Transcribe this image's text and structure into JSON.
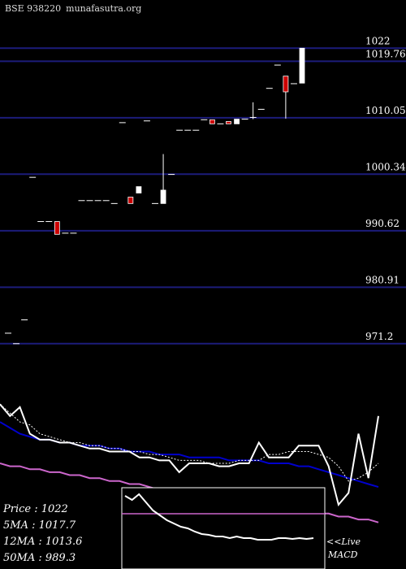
{
  "header": {
    "symbol": "BSE 938220",
    "site": "munafasutra.org"
  },
  "chart_data": {
    "type": "candlestick",
    "price_levels": [
      "1022",
      "1019.76",
      "1010.05",
      "1000.34",
      "990.62",
      "980.91",
      "971.2"
    ],
    "price_range": [
      966.0,
      1024.0
    ],
    "candles": [
      {
        "o": 973.0,
        "h": 973.0,
        "l": 973.0,
        "c": 973.0,
        "color": "white"
      },
      {
        "o": 971.2,
        "h": 971.2,
        "l": 971.2,
        "c": 971.2,
        "color": "white"
      },
      {
        "o": 975.3,
        "h": 975.3,
        "l": 975.3,
        "c": 975.3,
        "color": "white"
      },
      {
        "o": 999.8,
        "h": 999.8,
        "l": 999.8,
        "c": 999.8,
        "color": "white"
      },
      {
        "o": 992.2,
        "h": 992.2,
        "l": 992.2,
        "c": 992.2,
        "color": "white"
      },
      {
        "o": 992.2,
        "h": 992.2,
        "l": 992.2,
        "c": 992.2,
        "color": "white"
      },
      {
        "o": 992.2,
        "h": 992.2,
        "l": 990.0,
        "c": 990.0,
        "color": "red"
      },
      {
        "o": 990.2,
        "h": 990.2,
        "l": 990.2,
        "c": 990.2,
        "color": "white"
      },
      {
        "o": 990.2,
        "h": 990.2,
        "l": 990.2,
        "c": 990.2,
        "color": "white"
      },
      {
        "o": 995.8,
        "h": 995.8,
        "l": 995.8,
        "c": 995.8,
        "color": "white"
      },
      {
        "o": 995.8,
        "h": 995.8,
        "l": 995.8,
        "c": 995.8,
        "color": "white"
      },
      {
        "o": 995.8,
        "h": 995.8,
        "l": 995.8,
        "c": 995.8,
        "color": "white"
      },
      {
        "o": 995.8,
        "h": 995.8,
        "l": 995.8,
        "c": 995.8,
        "color": "white"
      },
      {
        "o": 995.3,
        "h": 995.3,
        "l": 995.3,
        "c": 995.3,
        "color": "white"
      },
      {
        "o": 1009.2,
        "h": 1009.2,
        "l": 1009.2,
        "c": 1009.2,
        "color": "white"
      },
      {
        "o": 996.4,
        "h": 996.4,
        "l": 995.3,
        "c": 995.3,
        "color": "red"
      },
      {
        "o": 997.1,
        "h": 998.2,
        "l": 997.1,
        "c": 998.2,
        "color": "white"
      },
      {
        "o": 1009.5,
        "h": 1009.5,
        "l": 1009.5,
        "c": 1009.5,
        "color": "white"
      },
      {
        "o": 995.3,
        "h": 995.3,
        "l": 995.3,
        "c": 995.3,
        "color": "white"
      },
      {
        "o": 995.3,
        "h": 1003.8,
        "l": 995.3,
        "c": 997.6,
        "color": "white"
      },
      {
        "o": 1000.3,
        "h": 1000.3,
        "l": 1000.3,
        "c": 1000.3,
        "color": "white"
      },
      {
        "o": 1007.9,
        "h": 1007.9,
        "l": 1007.9,
        "c": 1007.9,
        "color": "white"
      },
      {
        "o": 1007.9,
        "h": 1007.9,
        "l": 1007.9,
        "c": 1007.9,
        "color": "white"
      },
      {
        "o": 1007.9,
        "h": 1007.9,
        "l": 1007.9,
        "c": 1007.9,
        "color": "white"
      },
      {
        "o": 1009.7,
        "h": 1009.7,
        "l": 1009.7,
        "c": 1009.7,
        "color": "white"
      },
      {
        "o": 1009.7,
        "h": 1009.7,
        "l": 1009.0,
        "c": 1009.0,
        "color": "red"
      },
      {
        "o": 1009.0,
        "h": 1009.0,
        "l": 1009.0,
        "c": 1009.0,
        "color": "red"
      },
      {
        "o": 1009.4,
        "h": 1009.4,
        "l": 1009.0,
        "c": 1009.0,
        "color": "red"
      },
      {
        "o": 1009.0,
        "h": 1009.8,
        "l": 1009.0,
        "c": 1009.8,
        "color": "white"
      },
      {
        "o": 1009.8,
        "h": 1009.8,
        "l": 1009.8,
        "c": 1009.8,
        "color": "white"
      },
      {
        "o": 1010.1,
        "h": 1012.7,
        "l": 1009.8,
        "c": 1010.1,
        "color": "white"
      },
      {
        "o": 1011.5,
        "h": 1011.5,
        "l": 1011.5,
        "c": 1011.5,
        "color": "white"
      },
      {
        "o": 1015.1,
        "h": 1015.1,
        "l": 1015.1,
        "c": 1015.1,
        "color": "white"
      },
      {
        "o": 1019.1,
        "h": 1019.1,
        "l": 1019.1,
        "c": 1019.1,
        "color": "white"
      },
      {
        "o": 1017.2,
        "h": 1017.2,
        "l": 1009.9,
        "c": 1014.5,
        "color": "red"
      },
      {
        "o": 1015.9,
        "h": 1015.9,
        "l": 1015.9,
        "c": 1015.9,
        "color": "white"
      },
      {
        "o": 1016.0,
        "h": 1022.0,
        "l": 1016.0,
        "c": 1022.0,
        "color": "white"
      }
    ],
    "indicator_lines": {
      "price": [
        1022,
        1018,
        1021,
        1012,
        1010,
        1010,
        1009,
        1009,
        1008,
        1007,
        1007,
        1006,
        1006,
        1006,
        1004,
        1004,
        1003,
        1003,
        999,
        1002,
        1002,
        1002,
        1001,
        1001,
        1002,
        1002,
        1009,
        1004,
        1004,
        1004,
        1008,
        1008,
        1008,
        1001,
        988,
        992,
        1012,
        997,
        1018
      ],
      "ma5": [
        1022,
        1019,
        1016,
        1015,
        1012,
        1011,
        1010,
        1009,
        1009,
        1008,
        1008,
        1007,
        1007,
        1006,
        1006,
        1005,
        1005,
        1004,
        1003,
        1003,
        1003,
        1002,
        1002,
        1002,
        1003,
        1003,
        1003,
        1005,
        1005,
        1006,
        1006,
        1006,
        1005,
        1004,
        1001,
        996,
        997,
        999,
        1002
      ],
      "ma12": [
        1016,
        1014,
        1012,
        1011,
        1010,
        1010,
        1009,
        1009,
        1008,
        1008,
        1008,
        1007,
        1007,
        1006,
        1006,
        1006,
        1005,
        1005,
        1005,
        1004,
        1004,
        1004,
        1004,
        1003,
        1003,
        1003,
        1003,
        1002,
        1002,
        1002,
        1001,
        1001,
        1000,
        999,
        998,
        997,
        996,
        995,
        994
      ],
      "ma50": [
        1002,
        1001,
        1001,
        1000,
        1000,
        999,
        999,
        998,
        998,
        997,
        997,
        996,
        996,
        995,
        995,
        994,
        993,
        993,
        992,
        992,
        991,
        991,
        990,
        990,
        989,
        989,
        988,
        988,
        987,
        987,
        986,
        986,
        985,
        985,
        984,
        984,
        983,
        983,
        982
      ]
    },
    "macd": {
      "histogram": [
        0.9,
        0.85,
        0.92,
        0.82,
        0.72,
        0.66,
        0.6,
        0.56,
        0.52,
        0.5,
        0.46,
        0.43,
        0.42,
        0.4,
        0.4,
        0.38,
        0.4,
        0.38,
        0.38,
        0.36,
        0.36,
        0.36,
        0.38,
        0.38,
        0.37,
        0.38,
        0.37,
        0.38
      ],
      "signal": 0.68,
      "live_label": "<<Live",
      "label": "MACD"
    },
    "legend": {
      "price": "Price  :  1022",
      "ma5": "5MA : 1017.7",
      "ma12": "12MA : 1013.6",
      "ma50": "50MA : 989.3"
    }
  },
  "colors": {
    "background": "#000000",
    "grid_line": "#1c1c7a",
    "bull": "#ffffff",
    "bear": "#cc0000",
    "ma12": "#0000cc",
    "ma50": "#cc66cc",
    "macd_signal": "#cc66cc"
  }
}
